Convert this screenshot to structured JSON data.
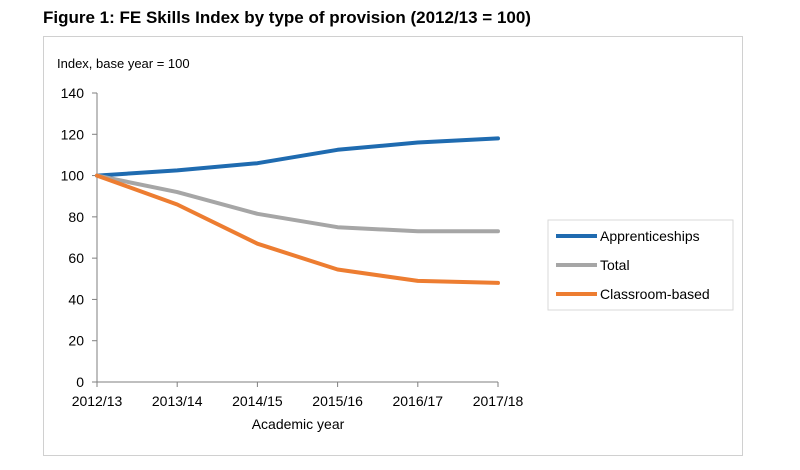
{
  "figure_title": "Figure 1: FE Skills Index by type of provision (2012/13 = 100)",
  "chart_data": {
    "type": "line",
    "title": "Figure 1: FE Skills Index by type of provision (2012/13 = 100)",
    "ylabel": "Index, base year = 100",
    "xlabel": "Academic year",
    "x": [
      "2012/13",
      "2013/14",
      "2014/15",
      "2015/16",
      "2016/17",
      "2017/18"
    ],
    "ylim": [
      0,
      140
    ],
    "yticks": [
      0,
      20,
      40,
      60,
      80,
      100,
      120,
      140
    ],
    "grid": false,
    "legend_position": "right",
    "series": [
      {
        "name": "Apprenticeships",
        "color": "#1f6bb0",
        "values": [
          100,
          102.5,
          106,
          112.5,
          116,
          118
        ]
      },
      {
        "name": "Total",
        "color": "#a6a6a6",
        "values": [
          100,
          92,
          81.5,
          75,
          73,
          73
        ]
      },
      {
        "name": "Classroom-based",
        "color": "#ed7d31",
        "values": [
          100,
          86,
          67,
          54.5,
          49,
          48
        ]
      }
    ]
  }
}
